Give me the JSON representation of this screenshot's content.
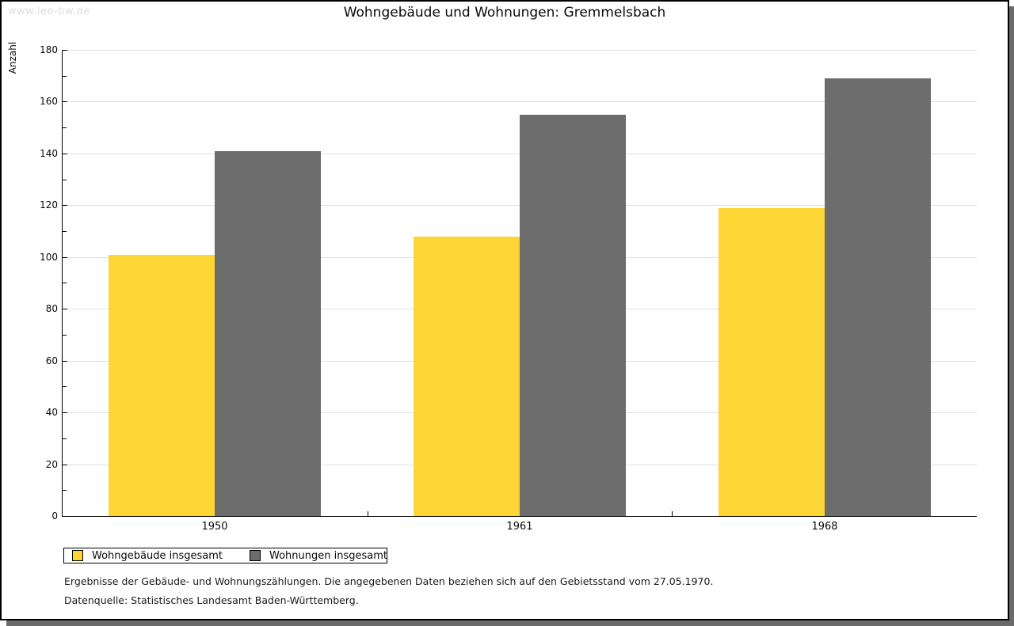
{
  "watermark": "www.leo-bw.de",
  "title": "Wohngebäude und Wohnungen: Gremmelsbach",
  "chart_data": {
    "type": "bar",
    "title": "Wohngebäude und Wohnungen: Gremmelsbach",
    "ylabel": "Anzahl",
    "xlabel": "",
    "categories": [
      "1950",
      "1961",
      "1968"
    ],
    "series": [
      {
        "name": "Wohngebäude insgesamt",
        "color": "#fdd535",
        "values": [
          101,
          108,
          119
        ]
      },
      {
        "name": "Wohnungen insgesamt",
        "color": "#6c6c6c",
        "values": [
          141,
          155,
          169
        ]
      }
    ],
    "ylim": [
      0,
      180
    ],
    "ytick_step": 20,
    "yminor_step": 10,
    "grid": true,
    "legend_position": "bottom-left"
  },
  "footnotes": {
    "line1": "Ergebnisse der Gebäude- und Wohnungszählungen. Die angegebenen Daten beziehen sich auf den Gebietsstand vom 27.05.1970.",
    "line2": "Datenquelle: Statistisches Landesamt Baden-Württemberg."
  },
  "colors": {
    "grid": "#e0e0e0",
    "axis": "#000000",
    "watermark": "#dedede",
    "panel_border": "#000000",
    "shadow": "#6b6b6b"
  }
}
